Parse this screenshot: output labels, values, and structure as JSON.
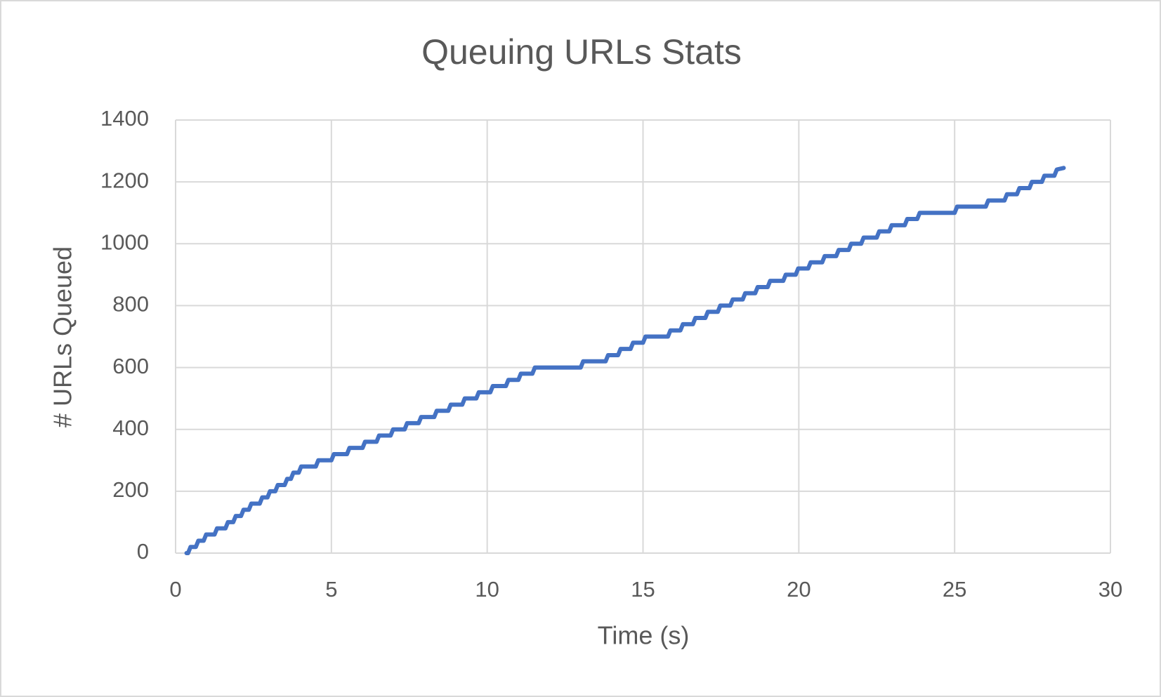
{
  "chart_data": {
    "type": "line",
    "title": "Queuing URLs Stats",
    "x_label": "Time (s)",
    "y_label": "# URLs Queued",
    "xlim": [
      0,
      30
    ],
    "xticks": [
      0,
      5,
      10,
      15,
      20,
      25,
      30
    ],
    "ylim": [
      0,
      1400
    ],
    "yticks": [
      0,
      200,
      400,
      600,
      800,
      1000,
      1200,
      1400
    ],
    "grid": true,
    "x": [
      0.35,
      0.4,
      0.48,
      0.65,
      0.73,
      0.9,
      0.98,
      1.25,
      1.33,
      1.6,
      1.68,
      1.85,
      1.93,
      2.1,
      2.18,
      2.35,
      2.43,
      2.7,
      2.78,
      2.95,
      3.03,
      3.2,
      3.28,
      3.5,
      3.58,
      3.7,
      3.78,
      3.95,
      4.03,
      4.5,
      4.58,
      5.0,
      5.08,
      5.5,
      5.58,
      6.0,
      6.08,
      6.45,
      6.53,
      6.9,
      6.98,
      7.35,
      7.43,
      7.8,
      7.88,
      8.3,
      8.38,
      8.75,
      8.83,
      9.2,
      9.28,
      9.65,
      9.73,
      10.1,
      10.18,
      10.6,
      10.68,
      11.0,
      11.08,
      11.45,
      11.53,
      13.0,
      13.08,
      13.8,
      13.88,
      14.2,
      14.28,
      14.6,
      14.68,
      15.0,
      15.08,
      15.8,
      15.88,
      16.2,
      16.28,
      16.6,
      16.68,
      17.0,
      17.08,
      17.4,
      17.48,
      17.8,
      17.88,
      18.2,
      18.28,
      18.6,
      18.68,
      19.0,
      19.08,
      19.5,
      19.58,
      19.9,
      19.98,
      20.3,
      20.38,
      20.75,
      20.83,
      21.2,
      21.28,
      21.6,
      21.68,
      22.0,
      22.08,
      22.5,
      22.58,
      22.9,
      22.98,
      23.4,
      23.48,
      23.8,
      23.88,
      25.0,
      25.08,
      26.0,
      26.08,
      26.6,
      26.68,
      27.0,
      27.08,
      27.4,
      27.48,
      27.8,
      27.88,
      28.2,
      28.28,
      28.5
    ],
    "series": [
      {
        "name": "URLs Queued",
        "color": "#4472c4",
        "values": [
          0,
          0,
          20,
          20,
          40,
          40,
          60,
          60,
          80,
          80,
          100,
          100,
          120,
          120,
          140,
          140,
          160,
          160,
          180,
          180,
          200,
          200,
          220,
          220,
          240,
          240,
          260,
          260,
          280,
          280,
          300,
          300,
          320,
          320,
          340,
          340,
          360,
          360,
          380,
          380,
          400,
          400,
          420,
          420,
          440,
          440,
          460,
          460,
          480,
          480,
          500,
          500,
          520,
          520,
          540,
          540,
          560,
          560,
          580,
          580,
          600,
          600,
          620,
          620,
          640,
          640,
          660,
          660,
          680,
          680,
          700,
          700,
          720,
          720,
          740,
          740,
          760,
          760,
          780,
          780,
          800,
          800,
          820,
          820,
          840,
          840,
          860,
          860,
          880,
          880,
          900,
          900,
          920,
          920,
          940,
          940,
          960,
          960,
          980,
          980,
          1000,
          1000,
          1020,
          1020,
          1040,
          1040,
          1060,
          1060,
          1080,
          1080,
          1100,
          1100,
          1120,
          1120,
          1140,
          1140,
          1160,
          1160,
          1180,
          1180,
          1200,
          1200,
          1220,
          1220,
          1240,
          1245
        ]
      }
    ]
  }
}
